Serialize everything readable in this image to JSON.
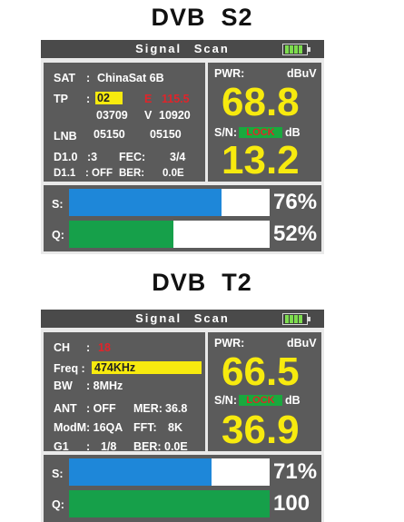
{
  "section1": {
    "heading_left": "DVB",
    "heading_right": "S2",
    "title": "Signal Scan",
    "colors": {
      "panel": "#5b5b5b",
      "value_yellow": "#f7ea0e",
      "signal_blue": "#1e87d9",
      "quality_green": "#16a04a",
      "lock_green": "#19a93e",
      "red": "#e0242a"
    },
    "info": {
      "sat_label": "SAT",
      "colon": ":",
      "sat_value": "ChinaSat 6B",
      "tp_label": "TP",
      "tp_value": "02",
      "tp_pol": "E",
      "tp_freq": "115.5",
      "tp_row2_value": "03709",
      "tp_row2_pol": "V",
      "tp_row2_freq": "10920",
      "lnb_label": "LNB",
      "lnb_value1": "05150",
      "lnb_value2": "05150",
      "d10_label": "D1.0",
      "d10_value": ":3",
      "fec_label": "FEC:",
      "fec_value": "3/4",
      "d11_label": "D1.1",
      "d11_value": ": OFF",
      "ber_label": "BER:",
      "ber_value": "0.0E"
    },
    "meter": {
      "pwr_label": "PWR:",
      "pwr_unit": "dBuV",
      "pwr_value": "68.8",
      "sn_label": "S/N:",
      "lock_text": "LOCK",
      "sn_unit": "dB",
      "sn_value": "13.2"
    },
    "bars": [
      {
        "label": "S:",
        "value_text": "76%",
        "fraction": 0.76,
        "color": "#1e87d9"
      },
      {
        "label": "Q:",
        "value_text": "52%",
        "fraction": 0.52,
        "color": "#16a04a"
      }
    ]
  },
  "section2": {
    "heading_left": "DVB",
    "heading_right": "T2",
    "title": "Signal Scan",
    "info": {
      "ch_label": "CH",
      "colon": ":",
      "ch_value": "18",
      "freq_label": "Freq :",
      "freq_value": "474KHz",
      "bw_label": "BW",
      "bw_value": ": 8MHz",
      "ant_label": "ANT",
      "ant_value": ": OFF",
      "mer_label": "MER:",
      "mer_value": "36.8",
      "modm_label": "ModM",
      "modm_value": ": 16QA",
      "fft_label": "FFT:",
      "fft_value": "8K",
      "g1_label": "G1",
      "g1_value": "1/8",
      "ber_label": "BER:",
      "ber_value": "0.0E"
    },
    "meter": {
      "pwr_label": "PWR:",
      "pwr_unit": "dBuV",
      "pwr_value": "66.5",
      "sn_label": "S/N:",
      "lock_text": "LOCK",
      "sn_unit": "dB",
      "sn_value": "36.9"
    },
    "bars": [
      {
        "label": "S:",
        "value_text": "71%",
        "fraction": 0.71,
        "color": "#1e87d9"
      },
      {
        "label": "Q:",
        "value_text": "100",
        "fraction": 1.0,
        "color": "#16a04a"
      }
    ]
  }
}
